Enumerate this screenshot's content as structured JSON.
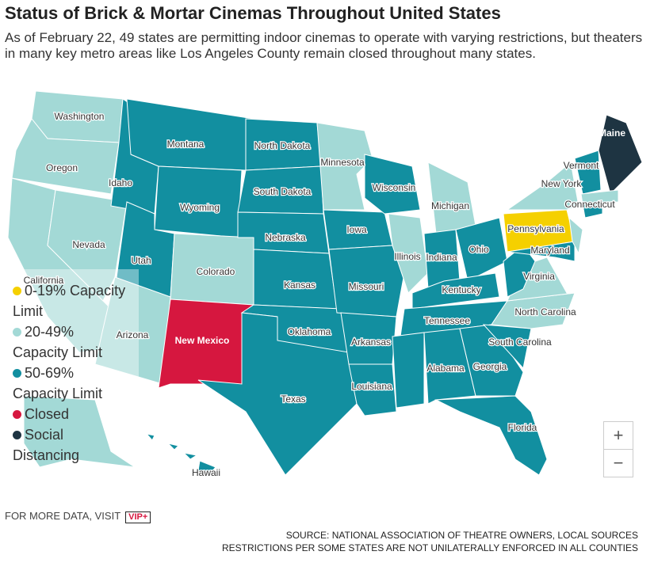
{
  "header": {
    "title": "Status of Brick & Mortar Cinemas Throughout United States",
    "subtitle": "As of February 22, 49 states are permitting indoor cinemas to operate with varying restrictions, but theaters in many key metro areas like Los Angeles County remain closed throughout many states."
  },
  "legend": [
    {
      "label": "0-19% Capacity Limit",
      "color": "#f5d000"
    },
    {
      "label": "20-49% Capacity Limit",
      "color": "#a3d9d6"
    },
    {
      "label": "50-69% Capacity Limit",
      "color": "#128fa0"
    },
    {
      "label": "Closed",
      "color": "#d6173f"
    },
    {
      "label": "Social Distancing",
      "color": "#1e3442"
    }
  ],
  "states": [
    {
      "name": "Washington",
      "group": 1
    },
    {
      "name": "Oregon",
      "group": 1
    },
    {
      "name": "California",
      "group": 1
    },
    {
      "name": "Nevada",
      "group": 1
    },
    {
      "name": "Idaho",
      "group": 2
    },
    {
      "name": "Montana",
      "group": 2
    },
    {
      "name": "Wyoming",
      "group": 2
    },
    {
      "name": "Utah",
      "group": 2
    },
    {
      "name": "Arizona",
      "group": 1
    },
    {
      "name": "Colorado",
      "group": 1
    },
    {
      "name": "New Mexico",
      "group": 3
    },
    {
      "name": "North Dakota",
      "group": 2
    },
    {
      "name": "South Dakota",
      "group": 2
    },
    {
      "name": "Nebraska",
      "group": 2
    },
    {
      "name": "Kansas",
      "group": 2
    },
    {
      "name": "Oklahoma",
      "group": 2
    },
    {
      "name": "Texas",
      "group": 2
    },
    {
      "name": "Minnesota",
      "group": 1
    },
    {
      "name": "Iowa",
      "group": 2
    },
    {
      "name": "Missouri",
      "group": 2
    },
    {
      "name": "Arkansas",
      "group": 2
    },
    {
      "name": "Louisiana",
      "group": 2
    },
    {
      "name": "Wisconsin",
      "group": 2
    },
    {
      "name": "Illinois",
      "group": 1
    },
    {
      "name": "Michigan",
      "group": 1
    },
    {
      "name": "Indiana",
      "group": 2
    },
    {
      "name": "Ohio",
      "group": 2
    },
    {
      "name": "Kentucky",
      "group": 2
    },
    {
      "name": "Tennessee",
      "group": 2
    },
    {
      "name": null,
      "group": 2
    },
    {
      "name": "Alabama",
      "group": 2
    },
    {
      "name": "Georgia",
      "group": 2
    },
    {
      "name": "Florida",
      "group": 2
    },
    {
      "name": "South Carolina",
      "group": 2
    },
    {
      "name": "North Carolina",
      "group": 1
    },
    {
      "name": "Virginia",
      "group": 1
    },
    {
      "name": null,
      "group": 2
    },
    {
      "name": "Pennsylvania",
      "group": 0
    },
    {
      "name": "New York",
      "group": 1
    },
    {
      "name": "Maryland",
      "group": 2
    },
    {
      "name": null,
      "group": 1
    },
    {
      "name": "Vermont",
      "group": 2
    },
    {
      "name": "Maine",
      "group": 4
    },
    {
      "name": null,
      "group": 1
    },
    {
      "name": "Connecticut",
      "group": 2
    },
    {
      "name": null,
      "group": 1
    },
    {
      "name": "Hawaii",
      "group": 2
    }
  ],
  "zoom": {
    "in": "+",
    "out": "−"
  },
  "footer": {
    "more": "FOR MORE DATA, VISIT",
    "logo": "VIP+",
    "source": "SOURCE: NATIONAL ASSOCIATION OF THEATRE OWNERS, LOCAL SOURCES",
    "note": "RESTRICTIONS PER SOME STATES ARE NOT UNILATERALLY ENFORCED IN ALL COUNTIES"
  }
}
